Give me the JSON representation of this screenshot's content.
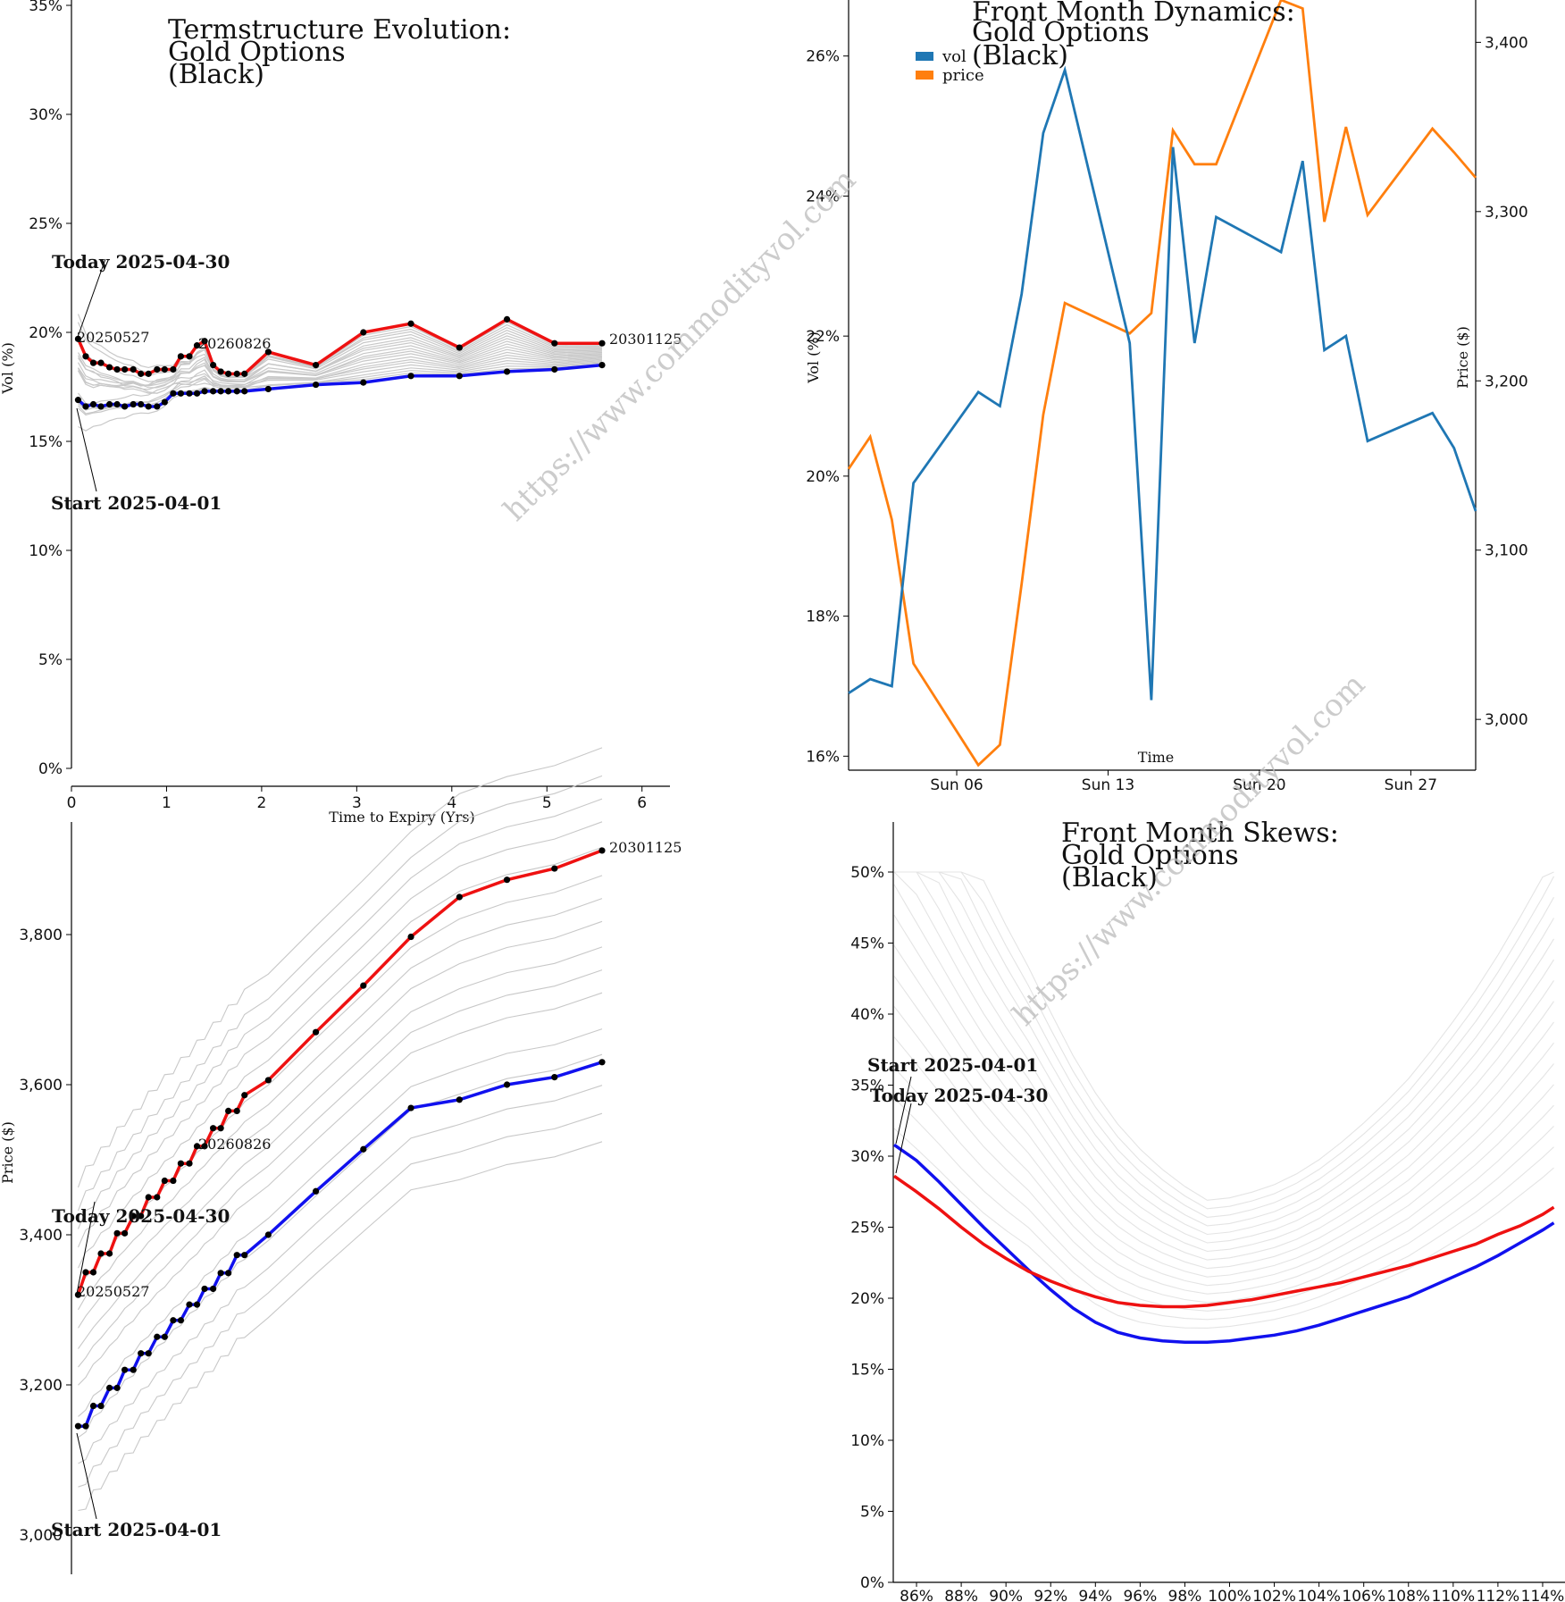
{
  "watermark": "https://www.commodityvol.com",
  "colors": {
    "red": "#ee1111",
    "blue": "#1111ee",
    "grey": "#c8c8c8",
    "vol": "#1f77b4",
    "price": "#ff7f0e"
  },
  "chart_data": [
    {
      "id": "termstructure",
      "type": "line",
      "title": [
        "Termstructure Evolution:",
        "Gold Options",
        "(Black)"
      ],
      "xlabel": "Time to Expiry (Yrs)",
      "ylabel": "Vol (%)",
      "xlim": [
        0,
        6.2
      ],
      "ylim": [
        0,
        0.35
      ],
      "xticks": [
        0,
        1,
        2,
        3,
        4,
        5,
        6
      ],
      "yticks": [
        0,
        0.05,
        0.1,
        0.15,
        0.2,
        0.25,
        0.3,
        0.35
      ],
      "ytick_labels": [
        "0%",
        "5%",
        "10%",
        "15%",
        "20%",
        "25%",
        "30%",
        "35%"
      ],
      "annotations": [
        "Today 2025-04-30",
        "Start 2025-04-01"
      ],
      "point_labels": [
        "20250527",
        "20260826",
        "20301125"
      ],
      "x": [
        0.07,
        0.15,
        0.23,
        0.31,
        0.4,
        0.48,
        0.56,
        0.65,
        0.73,
        0.81,
        0.9,
        0.98,
        1.07,
        1.15,
        1.24,
        1.32,
        1.4,
        1.49,
        1.57,
        1.65,
        1.74,
        1.82,
        2.07,
        2.57,
        3.07,
        3.57,
        4.08,
        4.58,
        5.08,
        5.58
      ],
      "series": [
        {
          "name": "Today 2025-04-30",
          "values": [
            0.197,
            0.189,
            0.186,
            0.186,
            0.184,
            0.183,
            0.183,
            0.183,
            0.181,
            0.181,
            0.183,
            0.183,
            0.183,
            0.189,
            0.189,
            0.194,
            0.196,
            0.185,
            0.182,
            0.181,
            0.181,
            0.181,
            0.191,
            0.185,
            0.2,
            0.204,
            0.193,
            0.206,
            0.195,
            0.195
          ]
        },
        {
          "name": "Start 2025-04-01",
          "values": [
            0.169,
            0.166,
            0.167,
            0.166,
            0.167,
            0.167,
            0.166,
            0.167,
            0.167,
            0.166,
            0.166,
            0.168,
            0.172,
            0.172,
            0.172,
            0.172,
            0.173,
            0.173,
            0.173,
            0.173,
            0.173,
            0.173,
            0.174,
            0.176,
            0.177,
            0.18,
            0.18,
            0.182,
            0.183,
            0.185
          ]
        }
      ]
    },
    {
      "id": "dynamics",
      "type": "line",
      "title": [
        "Front Month Dynamics:",
        "Gold Options",
        "(Black)"
      ],
      "xlabel": "Time",
      "ylabel": "Vol (%)",
      "y2label": "Price ($)",
      "xlim": [
        "2025-04-01",
        "2025-04-30"
      ],
      "ylim": [
        0.158,
        0.268
      ],
      "y2lim": [
        2970,
        3425
      ],
      "xtick_labels": [
        "Sun 06",
        "Sun 13",
        "Sun 20",
        "Sun 27"
      ],
      "xtick_dates": [
        "2025-04-06",
        "2025-04-13",
        "2025-04-20",
        "2025-04-27"
      ],
      "yticks": [
        0.16,
        0.18,
        0.2,
        0.22,
        0.24,
        0.26
      ],
      "ytick_labels": [
        "16%",
        "18%",
        "20%",
        "22%",
        "24%",
        "26%"
      ],
      "y2ticks": [
        3000,
        3100,
        3200,
        3300,
        3400
      ],
      "y2tick_labels": [
        "3,000",
        "3,100",
        "3,200",
        "3,300",
        "3,400"
      ],
      "legend": [
        "vol",
        "price"
      ],
      "legend_position": "top-left",
      "dates": [
        "2025-04-01",
        "2025-04-02",
        "2025-04-03",
        "2025-04-04",
        "2025-04-07",
        "2025-04-08",
        "2025-04-09",
        "2025-04-10",
        "2025-04-11",
        "2025-04-14",
        "2025-04-15",
        "2025-04-16",
        "2025-04-17",
        "2025-04-18",
        "2025-04-21",
        "2025-04-22",
        "2025-04-23",
        "2025-04-24",
        "2025-04-25",
        "2025-04-28",
        "2025-04-29",
        "2025-04-30"
      ],
      "series": [
        {
          "name": "vol",
          "axis": "left",
          "values": [
            0.169,
            0.171,
            0.17,
            0.199,
            0.212,
            0.21,
            0.226,
            0.249,
            0.258,
            0.219,
            0.168,
            0.247,
            0.219,
            0.237,
            0.232,
            0.245,
            0.218,
            0.22,
            0.205,
            0.209,
            0.204,
            0.195
          ]
        },
        {
          "name": "price",
          "axis": "right",
          "values": [
            3148,
            3167,
            3118,
            3033,
            2973,
            2985,
            3080,
            3180,
            3246,
            3228,
            3240,
            3348,
            3328,
            3328,
            3425,
            3420,
            3294,
            3350,
            3298,
            3349,
            3335,
            3320
          ]
        }
      ]
    },
    {
      "id": "forwardcurve",
      "type": "line",
      "ylabel": "Price ($)",
      "ylim": [
        3000,
        3960
      ],
      "yticks": [
        3000,
        3200,
        3400,
        3600,
        3800
      ],
      "ytick_labels": [
        "3,000",
        "3,200",
        "3,400",
        "3,600",
        "3,800"
      ],
      "annotations": [
        "Today 2025-04-30",
        "Start 2025-04-01"
      ],
      "point_labels": [
        "20250527",
        "20260826",
        "20301125"
      ],
      "x": [
        0.07,
        0.15,
        0.23,
        0.31,
        0.4,
        0.48,
        0.56,
        0.65,
        0.73,
        0.81,
        0.9,
        0.98,
        1.07,
        1.15,
        1.24,
        1.32,
        1.4,
        1.49,
        1.57,
        1.65,
        1.74,
        1.82,
        2.07,
        2.57,
        3.07,
        3.57,
        4.08,
        4.58,
        5.08,
        5.58
      ],
      "series": [
        {
          "name": "Today 2025-04-30",
          "values": [
            3320,
            3350,
            3350,
            3375,
            3375,
            3402,
            3402,
            3425,
            3425,
            3450,
            3450,
            3472,
            3472,
            3495,
            3495,
            3518,
            3518,
            3542,
            3542,
            3565,
            3565,
            3586,
            3606,
            3670,
            3732,
            3797,
            3850,
            3873,
            3888,
            3912
          ]
        },
        {
          "name": "Start 2025-04-01",
          "values": [
            3145,
            3145,
            3172,
            3172,
            3196,
            3196,
            3220,
            3220,
            3242,
            3242,
            3264,
            3264,
            3286,
            3286,
            3307,
            3307,
            3328,
            3328,
            3349,
            3349,
            3373,
            3373,
            3400,
            3458,
            3514,
            3569,
            3580,
            3600,
            3610,
            3630
          ]
        }
      ]
    },
    {
      "id": "skews",
      "type": "line",
      "title": [
        "Front Month Skews:",
        "Gold Options",
        "(Black)"
      ],
      "xlim": [
        0.85,
        1.15
      ],
      "ylim": [
        0,
        0.54
      ],
      "xtick_labels": [
        "86%",
        "88%",
        "90%",
        "92%",
        "94%",
        "96%",
        "98%",
        "100%",
        "102%",
        "104%",
        "106%",
        "108%",
        "110%",
        "112%",
        "114%"
      ],
      "xticks": [
        0.86,
        0.88,
        0.9,
        0.92,
        0.94,
        0.96,
        0.98,
        1.0,
        1.02,
        1.04,
        1.06,
        1.08,
        1.1,
        1.12,
        1.14
      ],
      "yticks": [
        0,
        0.05,
        0.1,
        0.15,
        0.2,
        0.25,
        0.3,
        0.35,
        0.4,
        0.45,
        0.5
      ],
      "ytick_labels": [
        "0%",
        "5%",
        "10%",
        "15%",
        "20%",
        "25%",
        "30%",
        "35%",
        "40%",
        "45%",
        "50%"
      ],
      "annotations": [
        "Start 2025-04-01",
        "Today 2025-04-30"
      ],
      "x": [
        0.85,
        0.86,
        0.87,
        0.88,
        0.89,
        0.9,
        0.91,
        0.92,
        0.93,
        0.94,
        0.95,
        0.96,
        0.97,
        0.98,
        0.99,
        1.0,
        1.01,
        1.02,
        1.03,
        1.04,
        1.05,
        1.06,
        1.07,
        1.08,
        1.09,
        1.1,
        1.11,
        1.12,
        1.13,
        1.14,
        1.145
      ],
      "series": [
        {
          "name": "Start 2025-04-01",
          "values": [
            0.308,
            0.297,
            0.282,
            0.266,
            0.25,
            0.235,
            0.22,
            0.206,
            0.193,
            0.183,
            0.176,
            0.172,
            0.17,
            0.169,
            0.169,
            0.17,
            0.172,
            0.174,
            0.177,
            0.181,
            0.186,
            0.191,
            0.196,
            0.201,
            0.208,
            0.215,
            0.222,
            0.23,
            0.239,
            0.248,
            0.253
          ]
        },
        {
          "name": "Today 2025-04-30",
          "values": [
            0.286,
            0.275,
            0.263,
            0.25,
            0.238,
            0.228,
            0.219,
            0.212,
            0.206,
            0.201,
            0.197,
            0.195,
            0.194,
            0.194,
            0.195,
            0.197,
            0.199,
            0.202,
            0.205,
            0.208,
            0.211,
            0.215,
            0.219,
            0.223,
            0.228,
            0.233,
            0.238,
            0.245,
            0.251,
            0.259,
            0.264
          ]
        }
      ]
    }
  ]
}
